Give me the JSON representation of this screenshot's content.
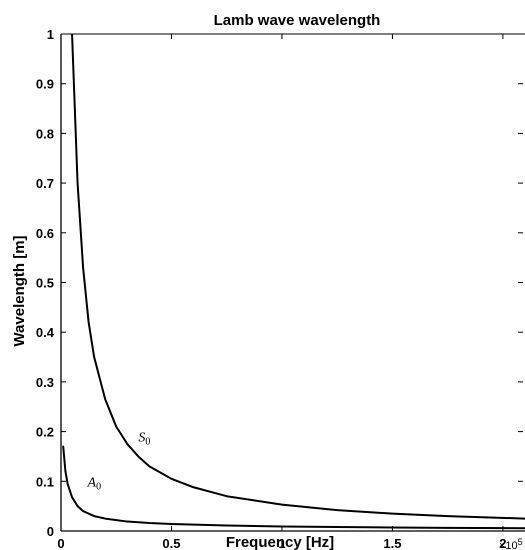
{
  "chart_data": {
    "type": "line",
    "title": "Lamb wave wavelength",
    "xlabel": "Frequency [Hz]",
    "ylabel": "Wavelength [m]",
    "x_exponent_label": "×10",
    "x_exponent_power": "5",
    "xlim": [
      0,
      210000
    ],
    "ylim": [
      0,
      1
    ],
    "xticks": [
      0,
      50000,
      100000,
      150000,
      200000
    ],
    "xtick_labels": [
      "0",
      "0.5",
      "1",
      "1.5",
      "2"
    ],
    "yticks": [
      0,
      0.1,
      0.2,
      0.3,
      0.4,
      0.5,
      0.6,
      0.7,
      0.8,
      0.9,
      1
    ],
    "ytick_labels": [
      "0",
      "0.1",
      "0.2",
      "0.3",
      "0.4",
      "0.5",
      "0.6",
      "0.7",
      "0.8",
      "0.9",
      "1"
    ],
    "grid": false,
    "series": [
      {
        "name": "S0",
        "label_base": "S",
        "label_sub": "0",
        "color": "#000000",
        "x": [
          5000,
          6000,
          7500,
          10000,
          12500,
          15000,
          20000,
          25000,
          30000,
          35000,
          40000,
          50000,
          60000,
          75000,
          100000,
          125000,
          150000,
          175000,
          210000
        ],
        "y": [
          1.0,
          0.88,
          0.7,
          0.53,
          0.42,
          0.35,
          0.265,
          0.21,
          0.175,
          0.15,
          0.13,
          0.105,
          0.088,
          0.07,
          0.053,
          0.042,
          0.035,
          0.03,
          0.025
        ]
      },
      {
        "name": "A0",
        "label_base": "A",
        "label_sub": "0",
        "color": "#000000",
        "x": [
          1000,
          2000,
          3000,
          5000,
          7500,
          10000,
          15000,
          20000,
          30000,
          40000,
          50000,
          75000,
          100000,
          125000,
          150000,
          175000,
          210000
        ],
        "y": [
          0.17,
          0.12,
          0.095,
          0.068,
          0.05,
          0.04,
          0.03,
          0.025,
          0.019,
          0.016,
          0.014,
          0.011,
          0.009,
          0.008,
          0.007,
          0.0063,
          0.0055
        ]
      }
    ],
    "annotations": [
      {
        "series": "S0",
        "x": 35000,
        "y": 0.18
      },
      {
        "series": "A0",
        "x": 12000,
        "y": 0.09
      }
    ]
  }
}
